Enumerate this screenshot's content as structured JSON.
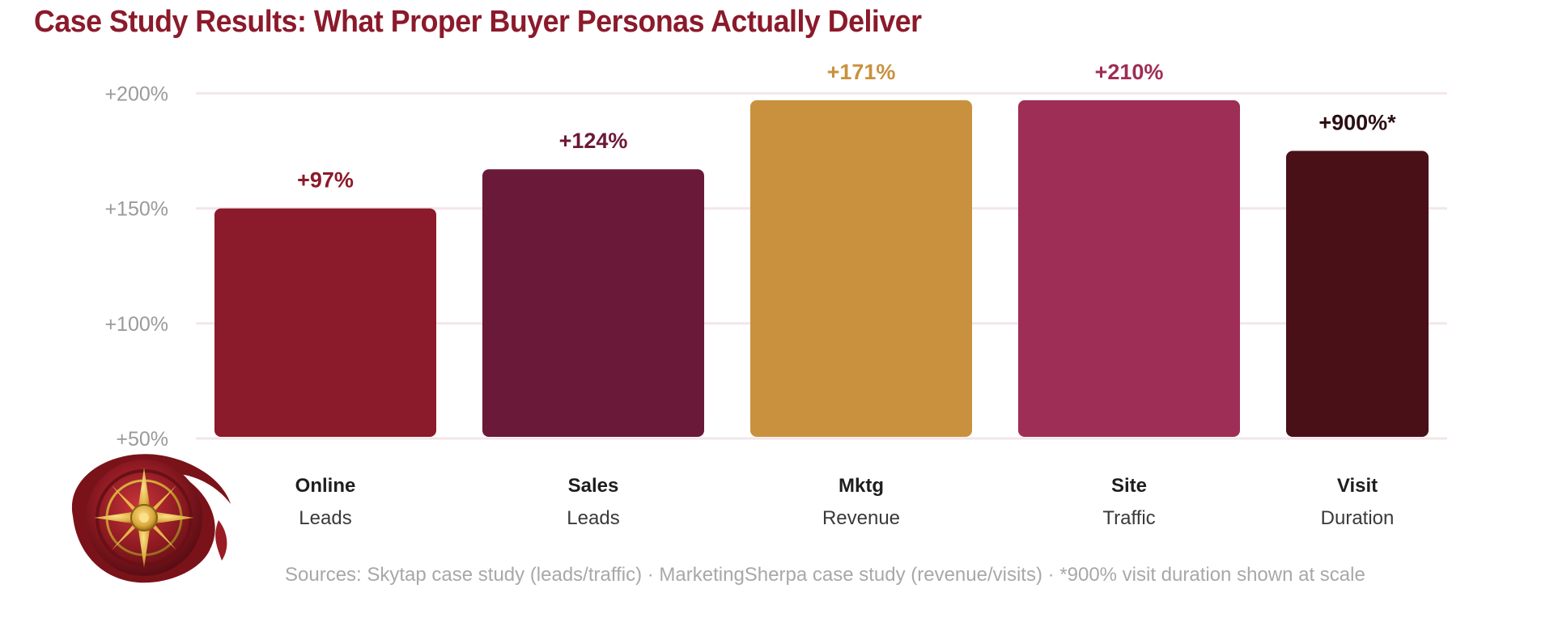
{
  "title": "Case Study Results: What Proper Buyer Personas Actually Deliver",
  "sources_note": "Sources: Skytap case study (leads/traffic) · MarketingSherpa case study (revenue/visits) · *900% visit duration shown at scale",
  "chart_data": {
    "type": "bar",
    "title": "Case Study Results: What Proper Buyer Personas Actually Deliver",
    "yticks": [
      "+50%",
      "+100%",
      "+150%",
      "+200%"
    ],
    "ytick_values": [
      50,
      100,
      150,
      200
    ],
    "ylim": [
      50,
      204
    ],
    "grid": true,
    "legend": "none",
    "categories": [
      {
        "line1": "Online",
        "line2": "Leads"
      },
      {
        "line1": "Sales",
        "line2": "Leads"
      },
      {
        "line1": "Mktg",
        "line2": "Revenue"
      },
      {
        "line1": "Site",
        "line2": "Traffic"
      },
      {
        "line1": "Visit",
        "line2": "Duration"
      }
    ],
    "values": [
      97,
      124,
      171,
      210,
      900
    ],
    "display_heights": [
      150,
      167,
      197,
      197,
      175
    ],
    "value_labels": [
      "+97%",
      "+124%",
      "+171%",
      "+210%",
      "+900%*"
    ],
    "colors": [
      "#8b1a2a",
      "#6b1938",
      "#c9913e",
      "#9e2e55",
      "#4a1018"
    ],
    "label_colors": [
      "#8b1a2a",
      "#6b1938",
      "#c9913e",
      "#9e2e55",
      "#2b0f12"
    ],
    "gridline_color": "#f3e6ea",
    "scale_note": "*900% visit duration shown at scale"
  }
}
